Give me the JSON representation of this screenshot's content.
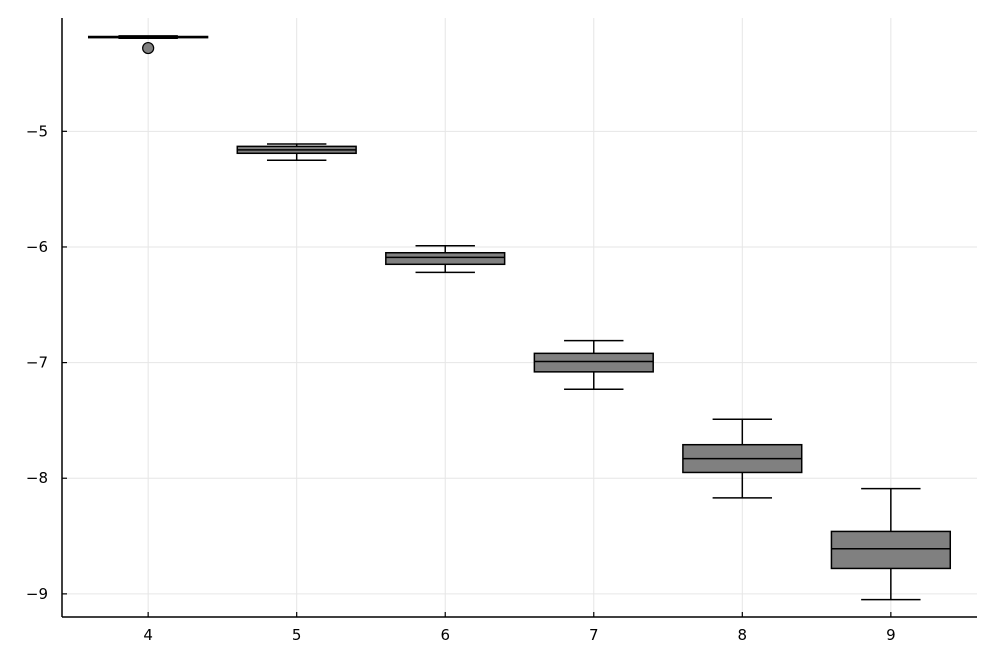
{
  "chart_data": {
    "type": "boxplot",
    "title": "",
    "xlabel": "",
    "ylabel": "",
    "categories": [
      "4",
      "5",
      "6",
      "7",
      "8",
      "9"
    ],
    "x_tick_labels": [
      "4",
      "5",
      "6",
      "7",
      "8",
      "9"
    ],
    "y_ticks": [
      -9,
      -8,
      -7,
      -6,
      -5
    ],
    "y_tick_labels": [
      "−9",
      "−8",
      "−7",
      "−6",
      "−5"
    ],
    "xlim": [
      3.42,
      9.58
    ],
    "ylim": [
      -9.2,
      -4.02
    ],
    "grid": true,
    "legend": false,
    "box_color": "#808080",
    "boxes": [
      {
        "category": "4",
        "whisker_low": -4.195,
        "q1": -4.19,
        "median": -4.185,
        "q3": -4.18,
        "whisker_high": -4.175,
        "cap_low": -4.195,
        "cap_high": -4.175,
        "outliers": [
          -4.28
        ]
      },
      {
        "category": "5",
        "whisker_low": -5.25,
        "q1": -5.19,
        "median": -5.16,
        "q3": -5.13,
        "whisker_high": -5.11,
        "outliers": []
      },
      {
        "category": "6",
        "whisker_low": -6.22,
        "q1": -6.15,
        "median": -6.09,
        "q3": -6.05,
        "whisker_high": -5.99,
        "outliers": []
      },
      {
        "category": "7",
        "whisker_low": -7.23,
        "q1": -7.08,
        "median": -6.99,
        "q3": -6.92,
        "whisker_high": -6.81,
        "outliers": []
      },
      {
        "category": "8",
        "whisker_low": -8.17,
        "q1": -7.95,
        "median": -7.83,
        "q3": -7.71,
        "whisker_high": -7.49,
        "outliers": []
      },
      {
        "category": "9",
        "whisker_low": -9.05,
        "q1": -8.78,
        "median": -8.61,
        "q3": -8.46,
        "whisker_high": -8.09,
        "outliers": []
      }
    ]
  }
}
